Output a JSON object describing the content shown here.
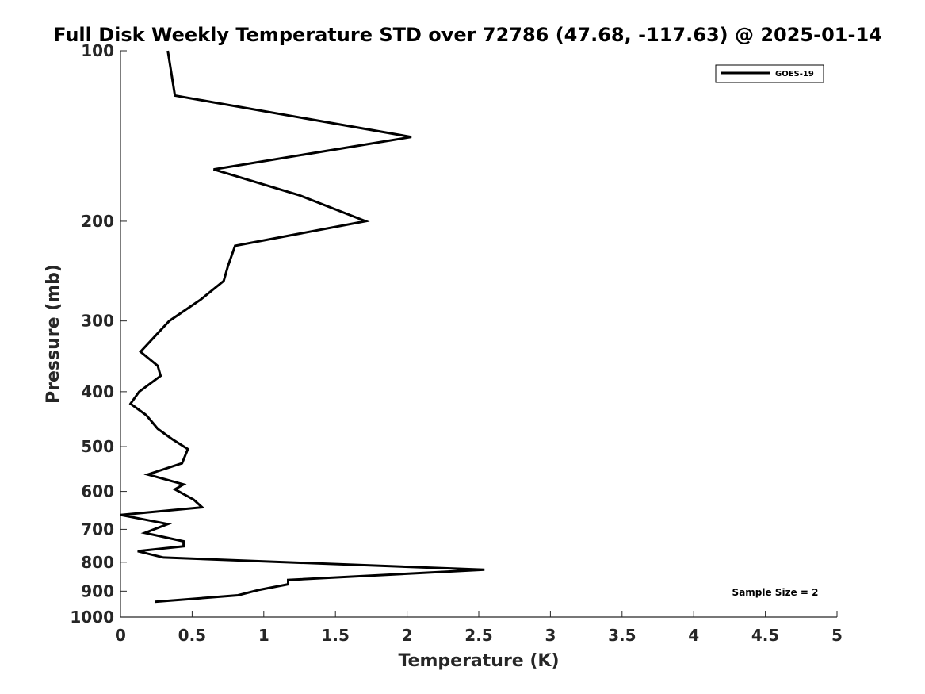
{
  "chart_data": {
    "type": "line",
    "title": "Full Disk Weekly Temperature STD over 72786 (47.68, -117.63) @ 2025-01-14",
    "xlabel": "Temperature (K)",
    "ylabel": "Pressure (mb)",
    "xlim": [
      0,
      5
    ],
    "ylim": [
      100,
      1000
    ],
    "y_scale": "log",
    "y_reversed": true,
    "x_ticks": [
      "0",
      "0.5",
      "1",
      "1.5",
      "2",
      "2.5",
      "3",
      "3.5",
      "4",
      "4.5",
      "5"
    ],
    "y_ticks": [
      "100",
      "200",
      "300",
      "400",
      "500",
      "600",
      "700",
      "800",
      "900",
      "1000"
    ],
    "grid": false,
    "legend_position": "top-right",
    "annotation": "Sample Size = 2",
    "series": [
      {
        "name": "GOES-19",
        "color": "#000000",
        "points": [
          [
            0.33,
            100
          ],
          [
            0.38,
            120
          ],
          [
            2.03,
            142
          ],
          [
            0.65,
            162
          ],
          [
            1.25,
            180
          ],
          [
            1.71,
            200
          ],
          [
            0.8,
            221
          ],
          [
            0.75,
            240
          ],
          [
            0.72,
            255
          ],
          [
            0.56,
            275
          ],
          [
            0.34,
            300
          ],
          [
            0.14,
            340
          ],
          [
            0.26,
            360
          ],
          [
            0.28,
            375
          ],
          [
            0.13,
            400
          ],
          [
            0.07,
            420
          ],
          [
            0.18,
            440
          ],
          [
            0.26,
            465
          ],
          [
            0.36,
            485
          ],
          [
            0.47,
            505
          ],
          [
            0.43,
            535
          ],
          [
            0.19,
            560
          ],
          [
            0.44,
            583
          ],
          [
            0.38,
            595
          ],
          [
            0.51,
            620
          ],
          [
            0.57,
            640
          ],
          [
            0.0,
            660
          ],
          [
            0.33,
            685
          ],
          [
            0.17,
            710
          ],
          [
            0.44,
            735
          ],
          [
            0.44,
            750
          ],
          [
            0.12,
            765
          ],
          [
            0.3,
            785
          ],
          [
            2.54,
            825
          ],
          [
            1.17,
            860
          ],
          [
            1.17,
            875
          ],
          [
            0.97,
            895
          ],
          [
            0.82,
            915
          ],
          [
            0.24,
            940
          ]
        ]
      }
    ]
  }
}
